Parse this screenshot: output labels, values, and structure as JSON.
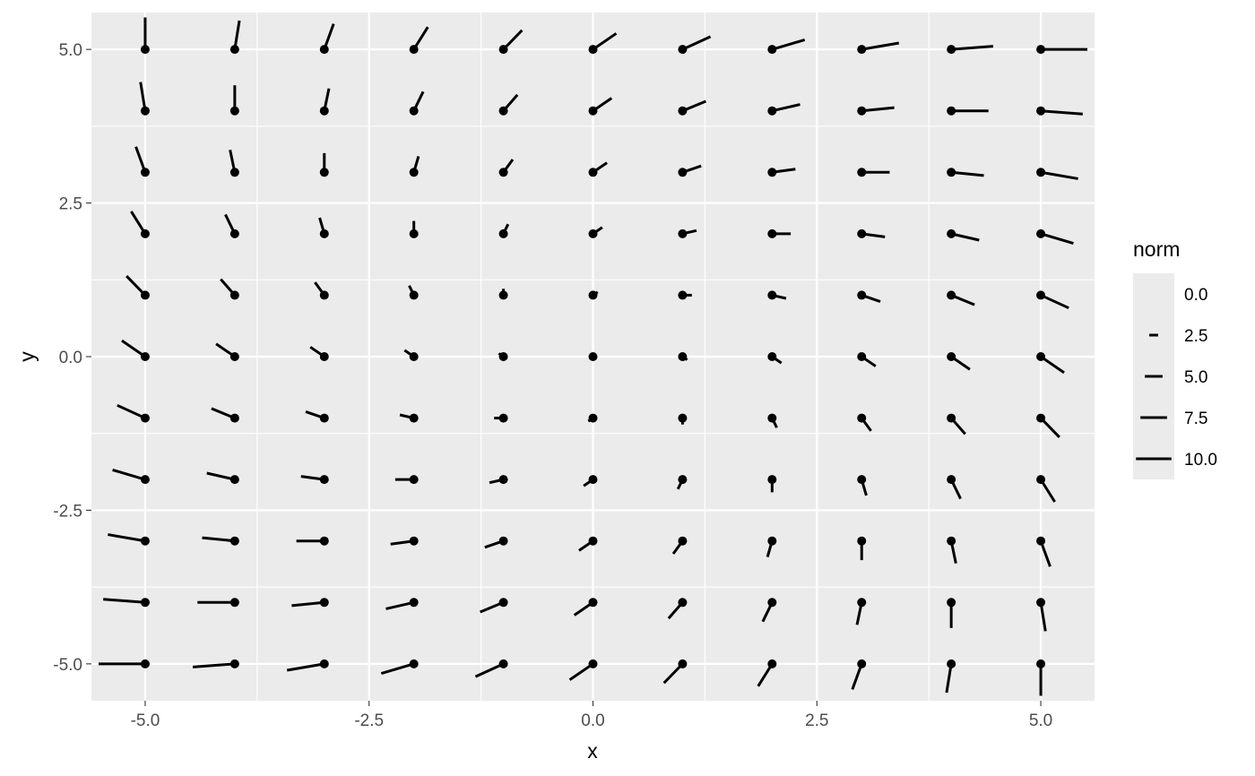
{
  "chart_data": {
    "type": "vector-field",
    "title": "",
    "xlabel": "x",
    "ylabel": "y",
    "xlim": [
      -5.6,
      5.6
    ],
    "ylim": [
      -5.6,
      5.6
    ],
    "x_ticks": [
      -5.0,
      -2.5,
      0.0,
      2.5,
      5.0
    ],
    "x_tick_labels": [
      "-5.0",
      "-2.5",
      "0.0",
      "2.5",
      "5.0"
    ],
    "y_ticks": [
      -5.0,
      -2.5,
      0.0,
      2.5,
      5.0
    ],
    "y_tick_labels": [
      "-5.0",
      "-2.5",
      "0.0",
      "2.5",
      "5.0"
    ],
    "grid_x": [
      -5,
      -4,
      -3,
      -2,
      -1,
      0,
      1,
      2,
      3,
      4,
      5
    ],
    "grid_y": [
      -5,
      -4,
      -3,
      -2,
      -1,
      0,
      1,
      2,
      3,
      4,
      5
    ],
    "vector_field": {
      "u": "x + y",
      "v": "y - x",
      "segment_scale": 0.052
    },
    "grid": true,
    "panel_background": "#ebebeb",
    "mark_color": "#000000",
    "legend": {
      "title": "norm",
      "position": "right",
      "entries": [
        {
          "label": "0.0",
          "value": 0.0
        },
        {
          "label": "2.5",
          "value": 2.5
        },
        {
          "label": "5.0",
          "value": 5.0
        },
        {
          "label": "7.5",
          "value": 7.5
        },
        {
          "label": "10.0",
          "value": 10.0
        }
      ]
    }
  }
}
